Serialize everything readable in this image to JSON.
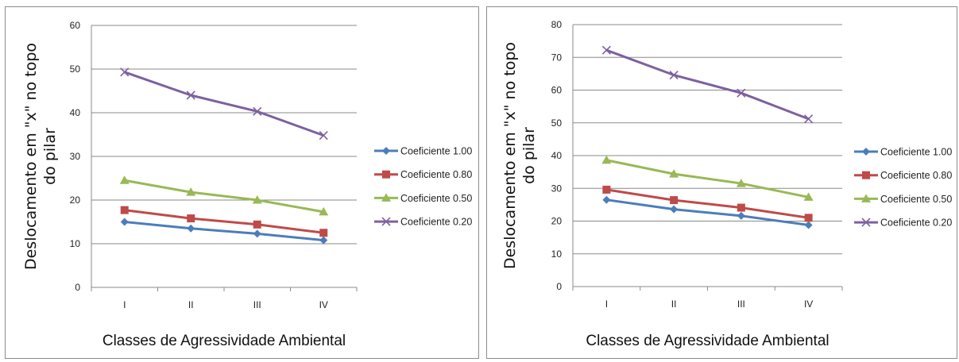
{
  "chart_data": [
    {
      "type": "line",
      "title": "",
      "xlabel": "Classes de Agressividade Ambiental",
      "ylabel_lines": [
        "Deslocamento em \"x\" no topo",
        "do pilar"
      ],
      "categories": [
        "I",
        "II",
        "III",
        "IV"
      ],
      "ylim": [
        0,
        60
      ],
      "yticks": [
        0,
        10,
        20,
        30,
        40,
        50,
        60
      ],
      "grid": true,
      "legend_position": "right",
      "series": [
        {
          "name": "Coeficiente 1.00",
          "values": [
            15.0,
            13.5,
            12.3,
            10.8
          ],
          "color": "#4a7ebb",
          "marker": "diamond"
        },
        {
          "name": "Coeficiente 0.80",
          "values": [
            17.7,
            15.8,
            14.4,
            12.5
          ],
          "color": "#be4b48",
          "marker": "square"
        },
        {
          "name": "Coeficiente 0.50",
          "values": [
            24.5,
            21.8,
            20.0,
            17.3
          ],
          "color": "#98b954",
          "marker": "triangle"
        },
        {
          "name": "Coeficiente 0.20",
          "values": [
            49.3,
            44.0,
            40.3,
            34.8
          ],
          "color": "#7d60a0",
          "marker": "x"
        }
      ]
    },
    {
      "type": "line",
      "title": "",
      "xlabel": "Classes de Agressividade Ambiental",
      "ylabel_lines": [
        "Deslocamento em \"x\" no topo",
        "do pilar"
      ],
      "categories": [
        "I",
        "II",
        "III",
        "IV"
      ],
      "ylim": [
        0,
        80
      ],
      "yticks": [
        0,
        10,
        20,
        30,
        40,
        50,
        60,
        70,
        80
      ],
      "grid": true,
      "legend_position": "right",
      "series": [
        {
          "name": "Coeficiente 1.00",
          "values": [
            26.5,
            23.6,
            21.6,
            18.8
          ],
          "color": "#4a7ebb",
          "marker": "diamond"
        },
        {
          "name": "Coeficiente 0.80",
          "values": [
            29.6,
            26.4,
            24.1,
            21.0
          ],
          "color": "#be4b48",
          "marker": "square"
        },
        {
          "name": "Coeficiente 0.50",
          "values": [
            38.6,
            34.4,
            31.5,
            27.3
          ],
          "color": "#98b954",
          "marker": "triangle"
        },
        {
          "name": "Coeficiente 0.20",
          "values": [
            72.2,
            64.6,
            59.1,
            51.2
          ],
          "color": "#7d60a0",
          "marker": "x"
        }
      ]
    }
  ]
}
